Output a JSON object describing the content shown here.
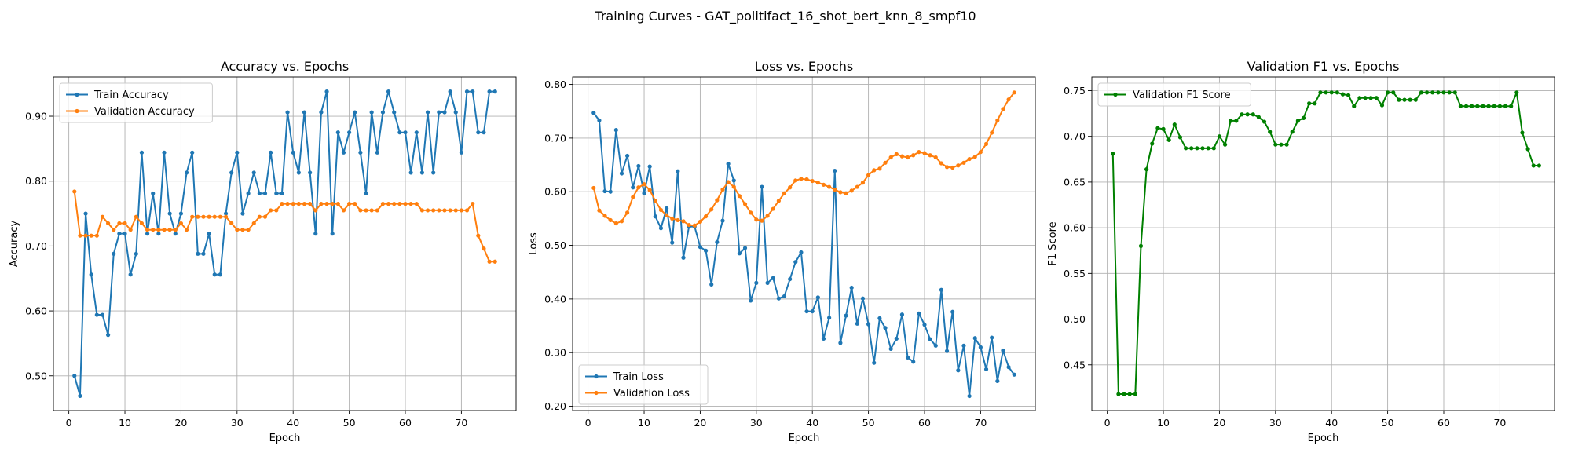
{
  "figure": {
    "title": "Training Curves - GAT_politifact_16_shot_bert_knn_8_smpf10"
  },
  "colors": {
    "blue": "#1f77b4",
    "orange": "#ff7f0e",
    "green": "#008000"
  },
  "chart_data": [
    {
      "type": "line",
      "title": "Accuracy vs. Epochs",
      "xlabel": "Epoch",
      "ylabel": "Accuracy",
      "xlim": [
        -2.75,
        79.75
      ],
      "ylim": [
        0.4465,
        0.9605
      ],
      "xticks": [
        0,
        10,
        20,
        30,
        40,
        50,
        60,
        70
      ],
      "yticks": [
        0.5,
        0.6,
        0.7,
        0.8,
        0.9
      ],
      "grid": true,
      "legend": "upper-left",
      "series": [
        {
          "name": "Train Accuracy",
          "color": "#1f77b4",
          "values": [
            0.5,
            0.469,
            0.75,
            0.656,
            0.594,
            0.594,
            0.563,
            0.688,
            0.719,
            0.719,
            0.656,
            0.688,
            0.844,
            0.719,
            0.781,
            0.719,
            0.844,
            0.75,
            0.719,
            0.75,
            0.813,
            0.844,
            0.688,
            0.688,
            0.719,
            0.656,
            0.656,
            0.75,
            0.813,
            0.844,
            0.75,
            0.781,
            0.813,
            0.781,
            0.781,
            0.844,
            0.781,
            0.781,
            0.906,
            0.844,
            0.813,
            0.906,
            0.813,
            0.719,
            0.906,
            0.938,
            0.719,
            0.875,
            0.844,
            0.875,
            0.906,
            0.844,
            0.781,
            0.906,
            0.844,
            0.906,
            0.938,
            0.906,
            0.875,
            0.875,
            0.813,
            0.875,
            0.813,
            0.906,
            0.813,
            0.906,
            0.906,
            0.938,
            0.906,
            0.844,
            0.938,
            0.938,
            0.875,
            0.875,
            0.938,
            0.938
          ]
        },
        {
          "name": "Validation Accuracy",
          "color": "#ff7f0e",
          "values": [
            0.784,
            0.716,
            0.716,
            0.716,
            0.716,
            0.745,
            0.735,
            0.725,
            0.735,
            0.735,
            0.725,
            0.745,
            0.735,
            0.725,
            0.725,
            0.725,
            0.725,
            0.725,
            0.725,
            0.735,
            0.725,
            0.745,
            0.745,
            0.745,
            0.745,
            0.745,
            0.745,
            0.745,
            0.735,
            0.725,
            0.725,
            0.725,
            0.735,
            0.745,
            0.745,
            0.755,
            0.755,
            0.765,
            0.765,
            0.765,
            0.765,
            0.765,
            0.765,
            0.755,
            0.765,
            0.765,
            0.765,
            0.765,
            0.755,
            0.765,
            0.765,
            0.755,
            0.755,
            0.755,
            0.755,
            0.765,
            0.765,
            0.765,
            0.765,
            0.765,
            0.765,
            0.765,
            0.755,
            0.755,
            0.755,
            0.755,
            0.755,
            0.755,
            0.755,
            0.755,
            0.755,
            0.765,
            0.716,
            0.696,
            0.676,
            0.676
          ]
        }
      ]
    },
    {
      "type": "line",
      "title": "Loss vs. Epochs",
      "xlabel": "Epoch",
      "ylabel": "Loss",
      "xlim": [
        -2.75,
        79.75
      ],
      "ylim": [
        0.192,
        0.814
      ],
      "xticks": [
        0,
        10,
        20,
        30,
        40,
        50,
        60,
        70
      ],
      "yticks": [
        0.2,
        0.3,
        0.4,
        0.5,
        0.6,
        0.7,
        0.8
      ],
      "grid": true,
      "legend": "lower-left",
      "series": [
        {
          "name": "Train Loss",
          "color": "#1f77b4",
          "values": [
            0.747,
            0.733,
            0.601,
            0.6,
            0.715,
            0.634,
            0.667,
            0.608,
            0.648,
            0.597,
            0.647,
            0.554,
            0.532,
            0.569,
            0.505,
            0.638,
            0.477,
            0.535,
            0.535,
            0.497,
            0.49,
            0.427,
            0.506,
            0.546,
            0.652,
            0.621,
            0.485,
            0.495,
            0.397,
            0.43,
            0.609,
            0.43,
            0.439,
            0.401,
            0.405,
            0.437,
            0.469,
            0.487,
            0.377,
            0.377,
            0.403,
            0.326,
            0.365,
            0.639,
            0.318,
            0.369,
            0.421,
            0.354,
            0.401,
            0.353,
            0.281,
            0.364,
            0.346,
            0.307,
            0.326,
            0.371,
            0.291,
            0.283,
            0.373,
            0.352,
            0.325,
            0.313,
            0.417,
            0.303,
            0.376,
            0.267,
            0.313,
            0.219,
            0.327,
            0.31,
            0.269,
            0.328,
            0.247,
            0.304,
            0.273,
            0.259
          ]
        },
        {
          "name": "Validation Loss",
          "color": "#ff7f0e",
          "values": [
            0.607,
            0.565,
            0.555,
            0.547,
            0.541,
            0.545,
            0.561,
            0.59,
            0.608,
            0.614,
            0.603,
            0.583,
            0.566,
            0.556,
            0.55,
            0.547,
            0.545,
            0.538,
            0.537,
            0.544,
            0.554,
            0.567,
            0.584,
            0.604,
            0.618,
            0.609,
            0.592,
            0.577,
            0.561,
            0.548,
            0.546,
            0.555,
            0.568,
            0.583,
            0.597,
            0.608,
            0.621,
            0.624,
            0.623,
            0.62,
            0.617,
            0.613,
            0.609,
            0.604,
            0.599,
            0.597,
            0.602,
            0.609,
            0.617,
            0.631,
            0.64,
            0.643,
            0.654,
            0.664,
            0.67,
            0.666,
            0.664,
            0.668,
            0.674,
            0.672,
            0.668,
            0.664,
            0.653,
            0.646,
            0.645,
            0.649,
            0.654,
            0.661,
            0.665,
            0.674,
            0.689,
            0.71,
            0.733,
            0.754,
            0.772,
            0.785
          ]
        }
      ]
    },
    {
      "type": "line",
      "title": "Validation F1 vs. Epochs",
      "xlabel": "Epoch",
      "ylabel": "F1 Score",
      "xlim": [
        -2.75,
        79.75
      ],
      "ylim": [
        0.4,
        0.765
      ],
      "xticks": [
        0,
        10,
        20,
        30,
        40,
        50,
        60,
        70
      ],
      "yticks": [
        0.45,
        0.5,
        0.55,
        0.6,
        0.65,
        0.7,
        0.75
      ],
      "grid": true,
      "legend": "upper-left",
      "series": [
        {
          "name": "Validation F1 Score",
          "color": "#008000",
          "values": [
            0.681,
            0.418,
            0.418,
            0.418,
            0.418,
            0.58,
            0.664,
            0.692,
            0.709,
            0.708,
            0.696,
            0.713,
            0.699,
            0.687,
            0.687,
            0.687,
            0.687,
            0.687,
            0.687,
            0.7,
            0.691,
            0.717,
            0.717,
            0.724,
            0.724,
            0.724,
            0.721,
            0.716,
            0.705,
            0.691,
            0.691,
            0.691,
            0.705,
            0.717,
            0.72,
            0.736,
            0.736,
            0.748,
            0.748,
            0.748,
            0.748,
            0.746,
            0.745,
            0.733,
            0.742,
            0.742,
            0.742,
            0.742,
            0.734,
            0.748,
            0.748,
            0.74,
            0.74,
            0.74,
            0.74,
            0.748,
            0.748,
            0.748,
            0.748,
            0.748,
            0.748,
            0.748,
            0.733,
            0.733,
            0.733,
            0.733,
            0.733,
            0.733,
            0.733,
            0.733,
            0.733,
            0.733,
            0.748,
            0.704,
            0.686,
            0.668,
            0.668
          ]
        }
      ]
    }
  ]
}
